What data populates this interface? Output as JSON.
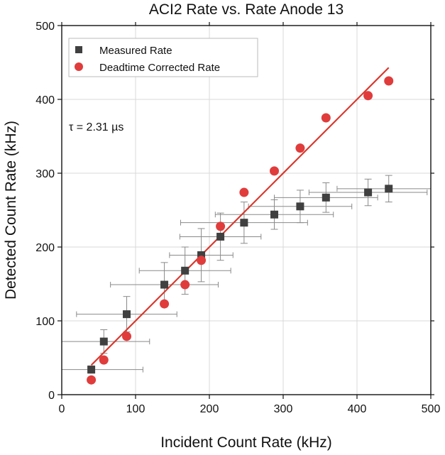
{
  "chart_data": {
    "type": "scatter",
    "title": "ACI2 Rate vs. Rate Anode 13",
    "xlabel": "Incident Count Rate (kHz)",
    "ylabel": "Detected Count Rate (kHz)",
    "xlim": [
      0,
      500
    ],
    "ylim": [
      0,
      500
    ],
    "xticks": [
      0,
      100,
      200,
      300,
      400,
      500
    ],
    "yticks": [
      0,
      100,
      200,
      300,
      400,
      500
    ],
    "grid": true,
    "legend_position": "top-left",
    "annotation": "τ = 2.31 µs",
    "series": [
      {
        "name": "Measured Rate",
        "marker": "square",
        "color": "#404040",
        "points": [
          {
            "x": 40,
            "y": 34,
            "xerr": 70,
            "yerr": 5
          },
          {
            "x": 57,
            "y": 72,
            "xerr": 62,
            "yerr": 16
          },
          {
            "x": 88,
            "y": 109,
            "xerr": 68,
            "yerr": 24
          },
          {
            "x": 139,
            "y": 149,
            "xerr": 73,
            "yerr": 30
          },
          {
            "x": 167,
            "y": 168,
            "xerr": 62,
            "yerr": 32
          },
          {
            "x": 189,
            "y": 189,
            "xerr": 43,
            "yerr": 36
          },
          {
            "x": 215,
            "y": 214,
            "xerr": 55,
            "yerr": 32
          },
          {
            "x": 247,
            "y": 233,
            "xerr": 86,
            "yerr": 28
          },
          {
            "x": 288,
            "y": 244,
            "xerr": 80,
            "yerr": 20
          },
          {
            "x": 323,
            "y": 255,
            "xerr": 70,
            "yerr": 22
          },
          {
            "x": 358,
            "y": 267,
            "xerr": 70,
            "yerr": 20
          },
          {
            "x": 415,
            "y": 274,
            "xerr": 80,
            "yerr": 18
          },
          {
            "x": 443,
            "y": 279,
            "xerr": 70,
            "yerr": 18
          }
        ]
      },
      {
        "name": "Deadtime Corrected Rate",
        "marker": "circle",
        "color": "#e03c3c",
        "points": [
          {
            "x": 40,
            "y": 20
          },
          {
            "x": 57,
            "y": 47
          },
          {
            "x": 88,
            "y": 79
          },
          {
            "x": 139,
            "y": 123
          },
          {
            "x": 167,
            "y": 149
          },
          {
            "x": 189,
            "y": 182
          },
          {
            "x": 215,
            "y": 228
          },
          {
            "x": 247,
            "y": 274
          },
          {
            "x": 288,
            "y": 303
          },
          {
            "x": 323,
            "y": 334
          },
          {
            "x": 358,
            "y": 375
          },
          {
            "x": 415,
            "y": 405
          },
          {
            "x": 443,
            "y": 425
          }
        ]
      }
    ],
    "fit_line": {
      "color": "#d63a2e",
      "x": [
        40,
        443
      ],
      "y": [
        40,
        443
      ]
    }
  }
}
